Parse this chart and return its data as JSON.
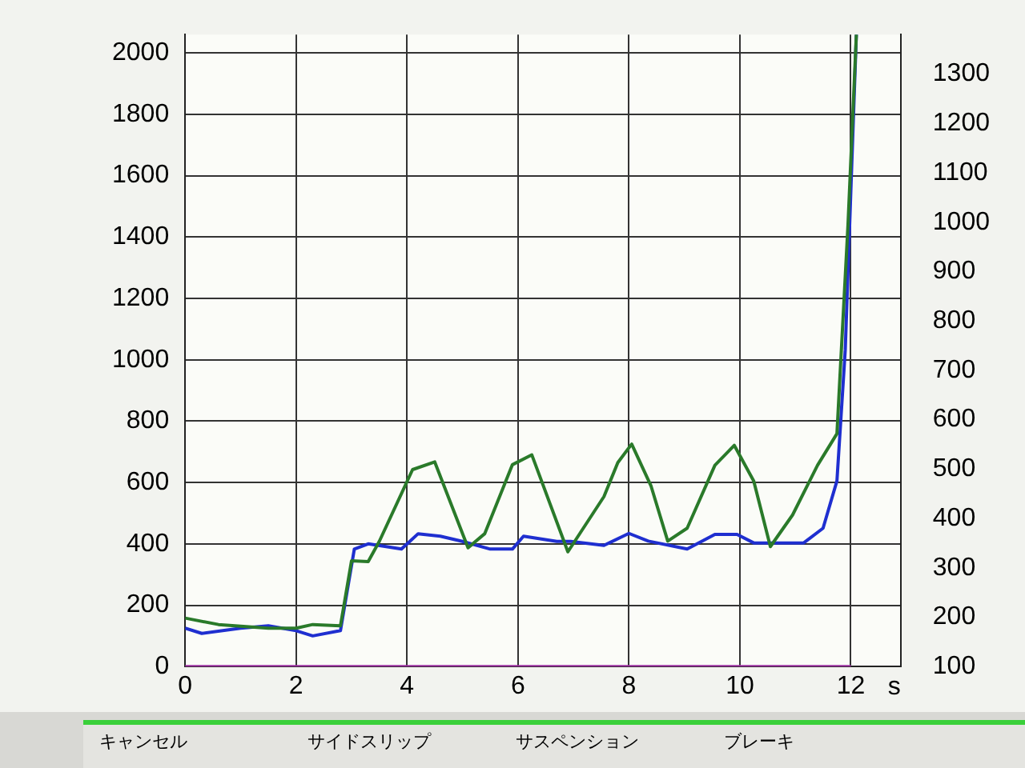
{
  "chart_data": {
    "type": "line",
    "xlabel": "s",
    "xlim": [
      0,
      12.9
    ],
    "xticks": [
      0,
      2,
      4,
      6,
      8,
      10,
      12
    ],
    "ylim": [
      0,
      2060
    ],
    "yticks": [
      0,
      200,
      400,
      600,
      800,
      1000,
      1200,
      1400,
      1600,
      1800,
      2000
    ],
    "y2lim": [
      100,
      1380
    ],
    "y2ticks": [
      100,
      200,
      300,
      400,
      500,
      600,
      700,
      800,
      900,
      1000,
      1100,
      1200,
      1300
    ],
    "grid": true,
    "legend": false,
    "marker": "none",
    "line_style": "solid",
    "series": [
      {
        "color": "#2a7a2a",
        "x": [
          0,
          0.6,
          1.5,
          2,
          2.3,
          2.8,
          3.0,
          3.3,
          3.5,
          4.1,
          4.5,
          5.1,
          5.4,
          5.9,
          6.25,
          6.9,
          7.55,
          7.8,
          8.05,
          8.4,
          8.7,
          9.05,
          9.55,
          9.9,
          10.25,
          10.55,
          10.95,
          11.4,
          11.75,
          11.95,
          12.1
        ],
        "values": [
          158,
          137,
          125,
          125,
          137,
          133,
          345,
          342,
          408,
          642,
          667,
          387,
          433,
          658,
          690,
          374,
          554,
          665,
          725,
          588,
          409,
          451,
          656,
          721,
          605,
          391,
          494,
          656,
          759,
          1443,
          2060
        ]
      },
      {
        "color": "#1f2fd0",
        "x": [
          0,
          0.3,
          1,
          1.5,
          2,
          2.3,
          2.8,
          3.05,
          3.3,
          3.9,
          4.2,
          4.6,
          5.0,
          5.5,
          5.9,
          6.1,
          6.7,
          6.95,
          7.55,
          8.0,
          8.35,
          9.05,
          9.55,
          9.95,
          10.25,
          11.15,
          11.5,
          11.75,
          11.9,
          12.1
        ],
        "values": [
          125,
          108,
          125,
          133,
          117,
          100,
          117,
          383,
          400,
          383,
          433,
          425,
          408,
          383,
          383,
          425,
          408,
          408,
          395,
          434,
          409,
          383,
          431,
          431,
          403,
          403,
          451,
          605,
          1032,
          2060
        ]
      },
      {
        "color": "#9b2fa0",
        "x": [
          0,
          12
        ],
        "values": [
          0,
          0
        ]
      }
    ],
    "annotations": [
      "キャンセル",
      "サイドスリップ",
      "サスペンション",
      "ブレーキ"
    ]
  }
}
